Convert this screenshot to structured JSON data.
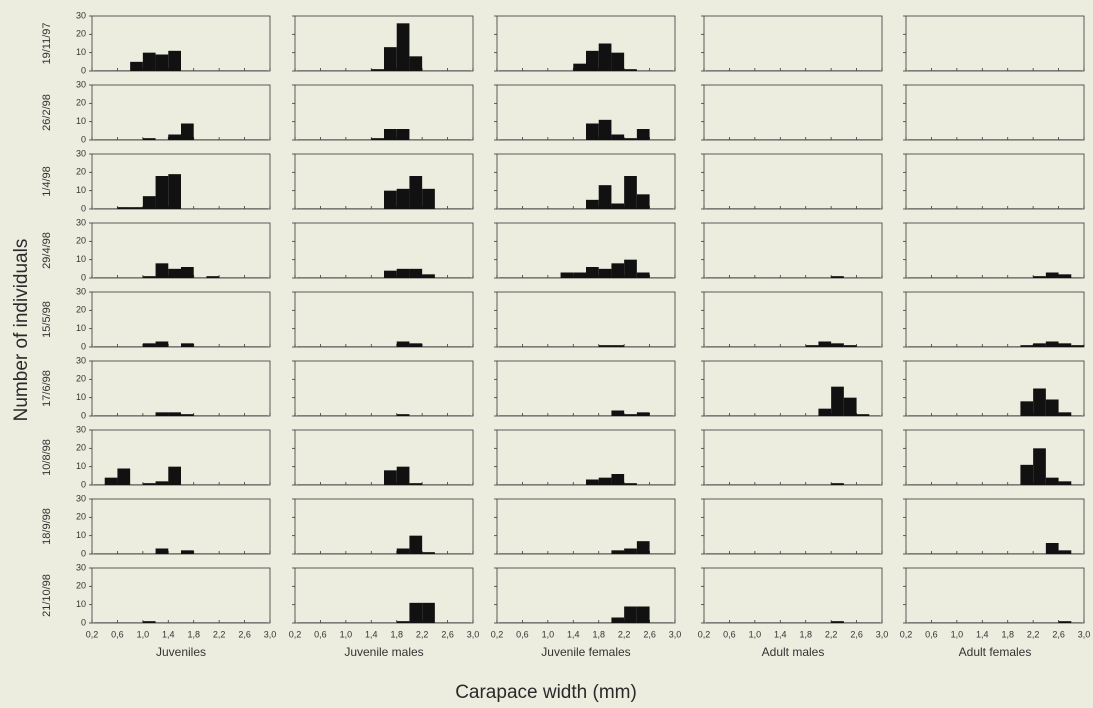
{
  "figure": {
    "ylabel": "Number of individuals",
    "xlabel": "Carapace width (mm)"
  },
  "chart_data": {
    "type": "bar",
    "layout": "small multiples (rows = sampling dates, columns = groups)",
    "rows": [
      "19/11/97",
      "26/2/98",
      "1/4/98",
      "29/4/98",
      "15/5/98",
      "17/6/98",
      "10/8/98",
      "18/9/98",
      "21/10/98"
    ],
    "columns": [
      "Juveniles",
      "Juvenile males",
      "Juvenile females",
      "Adult males",
      "Adult females"
    ],
    "x_ticks": [
      "0,2",
      "0,6",
      "1,0",
      "1,4",
      "1,8",
      "2,2",
      "2,6",
      "3,0"
    ],
    "y_ticks": [
      "0",
      "10",
      "20",
      "30"
    ],
    "xlim": [
      0.2,
      3.0
    ],
    "ylim": [
      0,
      30
    ],
    "bin_width": 0.2,
    "bins_start": [
      0.2,
      0.4,
      0.6,
      0.8,
      1.0,
      1.2,
      1.4,
      1.6,
      1.8,
      2.0,
      2.2,
      2.4,
      2.6,
      2.8
    ],
    "panels": [
      [
        [
          0,
          0,
          0,
          5,
          10,
          9,
          11,
          0,
          0,
          0,
          0,
          0,
          0,
          0
        ],
        [
          0,
          0,
          0,
          0,
          0,
          0,
          1,
          13,
          26,
          8,
          0,
          0,
          0,
          0
        ],
        [
          0,
          0,
          0,
          0,
          0,
          0,
          4,
          11,
          15,
          10,
          1,
          0,
          0,
          0
        ],
        [
          0,
          0,
          0,
          0,
          0,
          0,
          0,
          0,
          0,
          0,
          0,
          0,
          0,
          0
        ],
        [
          0,
          0,
          0,
          0,
          0,
          0,
          0,
          0,
          0,
          0,
          0,
          0,
          0,
          0
        ]
      ],
      [
        [
          0,
          0,
          0,
          0,
          1,
          0,
          3,
          9,
          0,
          0,
          0,
          0,
          0,
          0
        ],
        [
          0,
          0,
          0,
          0,
          0,
          0,
          1,
          6,
          6,
          0,
          0,
          0,
          0,
          0
        ],
        [
          0,
          0,
          0,
          0,
          0,
          0,
          0,
          9,
          11,
          3,
          1,
          6,
          0,
          0
        ],
        [
          0,
          0,
          0,
          0,
          0,
          0,
          0,
          0,
          0,
          0,
          0,
          0,
          0,
          0
        ],
        [
          0,
          0,
          0,
          0,
          0,
          0,
          0,
          0,
          0,
          0,
          0,
          0,
          0,
          0
        ]
      ],
      [
        [
          0,
          0,
          1,
          1,
          7,
          18,
          19,
          0,
          0,
          0,
          0,
          0,
          0,
          0
        ],
        [
          0,
          0,
          0,
          0,
          0,
          0,
          0,
          10,
          11,
          18,
          11,
          0,
          0,
          0
        ],
        [
          0,
          0,
          0,
          0,
          0,
          0,
          0,
          5,
          13,
          3,
          18,
          8,
          0,
          0
        ],
        [
          0,
          0,
          0,
          0,
          0,
          0,
          0,
          0,
          0,
          0,
          0,
          0,
          0,
          0
        ],
        [
          0,
          0,
          0,
          0,
          0,
          0,
          0,
          0,
          0,
          0,
          0,
          0,
          0,
          0
        ]
      ],
      [
        [
          0,
          0,
          0,
          0,
          1,
          8,
          5,
          6,
          0,
          1,
          0,
          0,
          0,
          0
        ],
        [
          0,
          0,
          0,
          0,
          0,
          0,
          0,
          4,
          5,
          5,
          2,
          0,
          0,
          0
        ],
        [
          0,
          0,
          0,
          0,
          0,
          3,
          3,
          6,
          5,
          8,
          10,
          3,
          0,
          0
        ],
        [
          0,
          0,
          0,
          0,
          0,
          0,
          0,
          0,
          0,
          0,
          1,
          0,
          0,
          0
        ],
        [
          0,
          0,
          0,
          0,
          0,
          0,
          0,
          0,
          0,
          0,
          1,
          3,
          2,
          0
        ]
      ],
      [
        [
          0,
          0,
          0,
          0,
          2,
          3,
          0,
          2,
          0,
          0,
          0,
          0,
          0,
          0
        ],
        [
          0,
          0,
          0,
          0,
          0,
          0,
          0,
          0,
          3,
          2,
          0,
          0,
          0,
          0
        ],
        [
          0,
          0,
          0,
          0,
          0,
          0,
          0,
          0,
          1,
          1,
          0,
          0,
          0,
          0
        ],
        [
          0,
          0,
          0,
          0,
          0,
          0,
          0,
          0,
          1,
          3,
          2,
          1,
          0,
          0
        ],
        [
          0,
          0,
          0,
          0,
          0,
          0,
          0,
          0,
          0,
          1,
          2,
          3,
          2,
          1
        ]
      ],
      [
        [
          0,
          0,
          0,
          0,
          0,
          2,
          2,
          1,
          0,
          0,
          0,
          0,
          0,
          0
        ],
        [
          0,
          0,
          0,
          0,
          0,
          0,
          0,
          0,
          1,
          0,
          0,
          0,
          0,
          0
        ],
        [
          0,
          0,
          0,
          0,
          0,
          0,
          0,
          0,
          0,
          3,
          1,
          2,
          0,
          0
        ],
        [
          0,
          0,
          0,
          0,
          0,
          0,
          0,
          0,
          0,
          4,
          16,
          10,
          1,
          0
        ],
        [
          0,
          0,
          0,
          0,
          0,
          0,
          0,
          0,
          0,
          8,
          15,
          9,
          2,
          0
        ]
      ],
      [
        [
          0,
          4,
          9,
          0,
          1,
          2,
          10,
          0,
          0,
          0,
          0,
          0,
          0,
          0
        ],
        [
          0,
          0,
          0,
          0,
          0,
          0,
          0,
          8,
          10,
          1,
          0,
          0,
          0,
          0
        ],
        [
          0,
          0,
          0,
          0,
          0,
          0,
          0,
          3,
          4,
          6,
          1,
          0,
          0,
          0
        ],
        [
          0,
          0,
          0,
          0,
          0,
          0,
          0,
          0,
          0,
          0,
          1,
          0,
          0,
          0
        ],
        [
          0,
          0,
          0,
          0,
          0,
          0,
          0,
          0,
          0,
          11,
          20,
          4,
          2,
          0
        ]
      ],
      [
        [
          0,
          0,
          0,
          0,
          0,
          3,
          0,
          2,
          0,
          0,
          0,
          0,
          0,
          0
        ],
        [
          0,
          0,
          0,
          0,
          0,
          0,
          0,
          0,
          3,
          10,
          1,
          0,
          0,
          0
        ],
        [
          0,
          0,
          0,
          0,
          0,
          0,
          0,
          0,
          0,
          2,
          3,
          7,
          0,
          0
        ],
        [
          0,
          0,
          0,
          0,
          0,
          0,
          0,
          0,
          0,
          0,
          0,
          0,
          0,
          0
        ],
        [
          0,
          0,
          0,
          0,
          0,
          0,
          0,
          0,
          0,
          0,
          0,
          6,
          2,
          0
        ]
      ],
      [
        [
          0,
          0,
          0,
          0,
          1,
          0,
          0,
          0,
          0,
          0,
          0,
          0,
          0,
          0
        ],
        [
          0,
          0,
          0,
          0,
          0,
          0,
          0,
          0,
          1,
          11,
          11,
          0,
          0,
          0
        ],
        [
          0,
          0,
          0,
          0,
          0,
          0,
          0,
          0,
          0,
          3,
          9,
          9,
          0,
          0
        ],
        [
          0,
          0,
          0,
          0,
          0,
          0,
          0,
          0,
          0,
          0,
          1,
          0,
          0,
          0
        ],
        [
          0,
          0,
          0,
          0,
          0,
          0,
          0,
          0,
          0,
          0,
          0,
          0,
          1,
          0
        ]
      ]
    ]
  }
}
